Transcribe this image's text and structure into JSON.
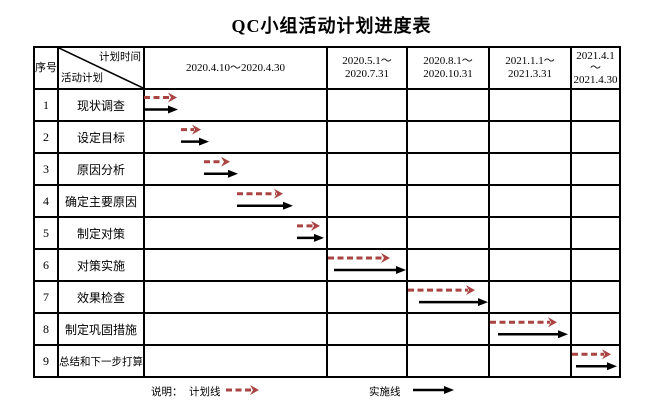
{
  "title": "QC小组活动计划进度表",
  "header": {
    "seq": "序号",
    "diag_top": "计划时间",
    "diag_bottom": "活动计划",
    "periods": [
      [
        "2020.4.10～2020.4.30"
      ],
      [
        "2020.5.1～",
        "2020.7.31"
      ],
      [
        "2020.8.1～",
        "2020.10.31"
      ],
      [
        "2021.1.1～",
        "2021.3.31"
      ],
      [
        "2021.4.1",
        "～",
        "2021.4.30"
      ]
    ]
  },
  "legend": {
    "prefix": "说明：",
    "plan_label": "计划线",
    "actual_label": "实施线"
  },
  "chart_data": {
    "type": "gantt",
    "title": "QC小组活动计划进度表",
    "columns": [
      "2020.4.10～2020.4.30",
      "2020.5.1～2020.7.31",
      "2020.8.1～2020.10.31",
      "2021.1.1～2021.3.31",
      "2021.4.1～2021.4.30"
    ],
    "series": [
      {
        "name": "计划线",
        "style": "dashed",
        "color": "#a94442"
      },
      {
        "name": "实施线",
        "style": "solid",
        "color": "#000000"
      }
    ],
    "rows": [
      {
        "no": "1",
        "activity": "现状调查",
        "plan": [
          144,
          177
        ],
        "actual": [
          144,
          178
        ]
      },
      {
        "no": "2",
        "activity": "设定目标",
        "plan": [
          181,
          201
        ],
        "actual": [
          181,
          209
        ]
      },
      {
        "no": "3",
        "activity": "原因分析",
        "plan": [
          204,
          230
        ],
        "actual": [
          204,
          238
        ]
      },
      {
        "no": "4",
        "activity": "确定主要原因",
        "plan": [
          237,
          283
        ],
        "actual": [
          237,
          293
        ]
      },
      {
        "no": "5",
        "activity": "制定对策",
        "plan": [
          297,
          320
        ],
        "actual": [
          297,
          324
        ]
      },
      {
        "no": "6",
        "activity": "对策实施",
        "plan": [
          328,
          390
        ],
        "actual": [
          334,
          406
        ]
      },
      {
        "no": "7",
        "activity": "效果检查",
        "plan": [
          408,
          475
        ],
        "actual": [
          419,
          488
        ]
      },
      {
        "no": "8",
        "activity": "制定巩固措施",
        "plan": [
          490,
          557
        ],
        "actual": [
          498,
          568
        ]
      },
      {
        "no": "9",
        "activity": "总结和下一步打算",
        "plan": [
          572,
          611
        ],
        "actual": [
          576,
          617
        ]
      }
    ]
  },
  "colors": {
    "plan": "#a94442",
    "actual": "#000000"
  }
}
